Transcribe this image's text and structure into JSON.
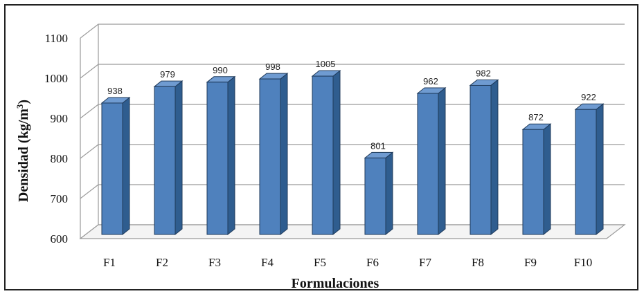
{
  "chart_data": {
    "type": "bar",
    "categories": [
      "F1",
      "F2",
      "F3",
      "F4",
      "F5",
      "F6",
      "F7",
      "F8",
      "F9",
      "F10"
    ],
    "values": [
      938,
      979,
      990,
      998,
      1005,
      801,
      962,
      982,
      872,
      922
    ],
    "data_labels": [
      "938",
      "979",
      "990",
      "998",
      "1005",
      "801",
      "962",
      "982",
      "872",
      "922"
    ],
    "xlabel": "Formulaciones",
    "ylabel_main": "Densidad (kg/m",
    "ylabel_sup": "3",
    "ylabel_close": ")",
    "ylim": [
      600,
      1100
    ],
    "yticks": [
      "600",
      "700",
      "800",
      "900",
      "1000",
      "1100"
    ],
    "grid": true,
    "legend": "none",
    "style": "3d-column"
  },
  "colors": {
    "bar_front": "#4f81bd",
    "bar_side": "#2f5d8f",
    "bar_top": "#6f9bd1",
    "bar_edge": "#1f3a5a",
    "grid": "#9a9a9a"
  }
}
